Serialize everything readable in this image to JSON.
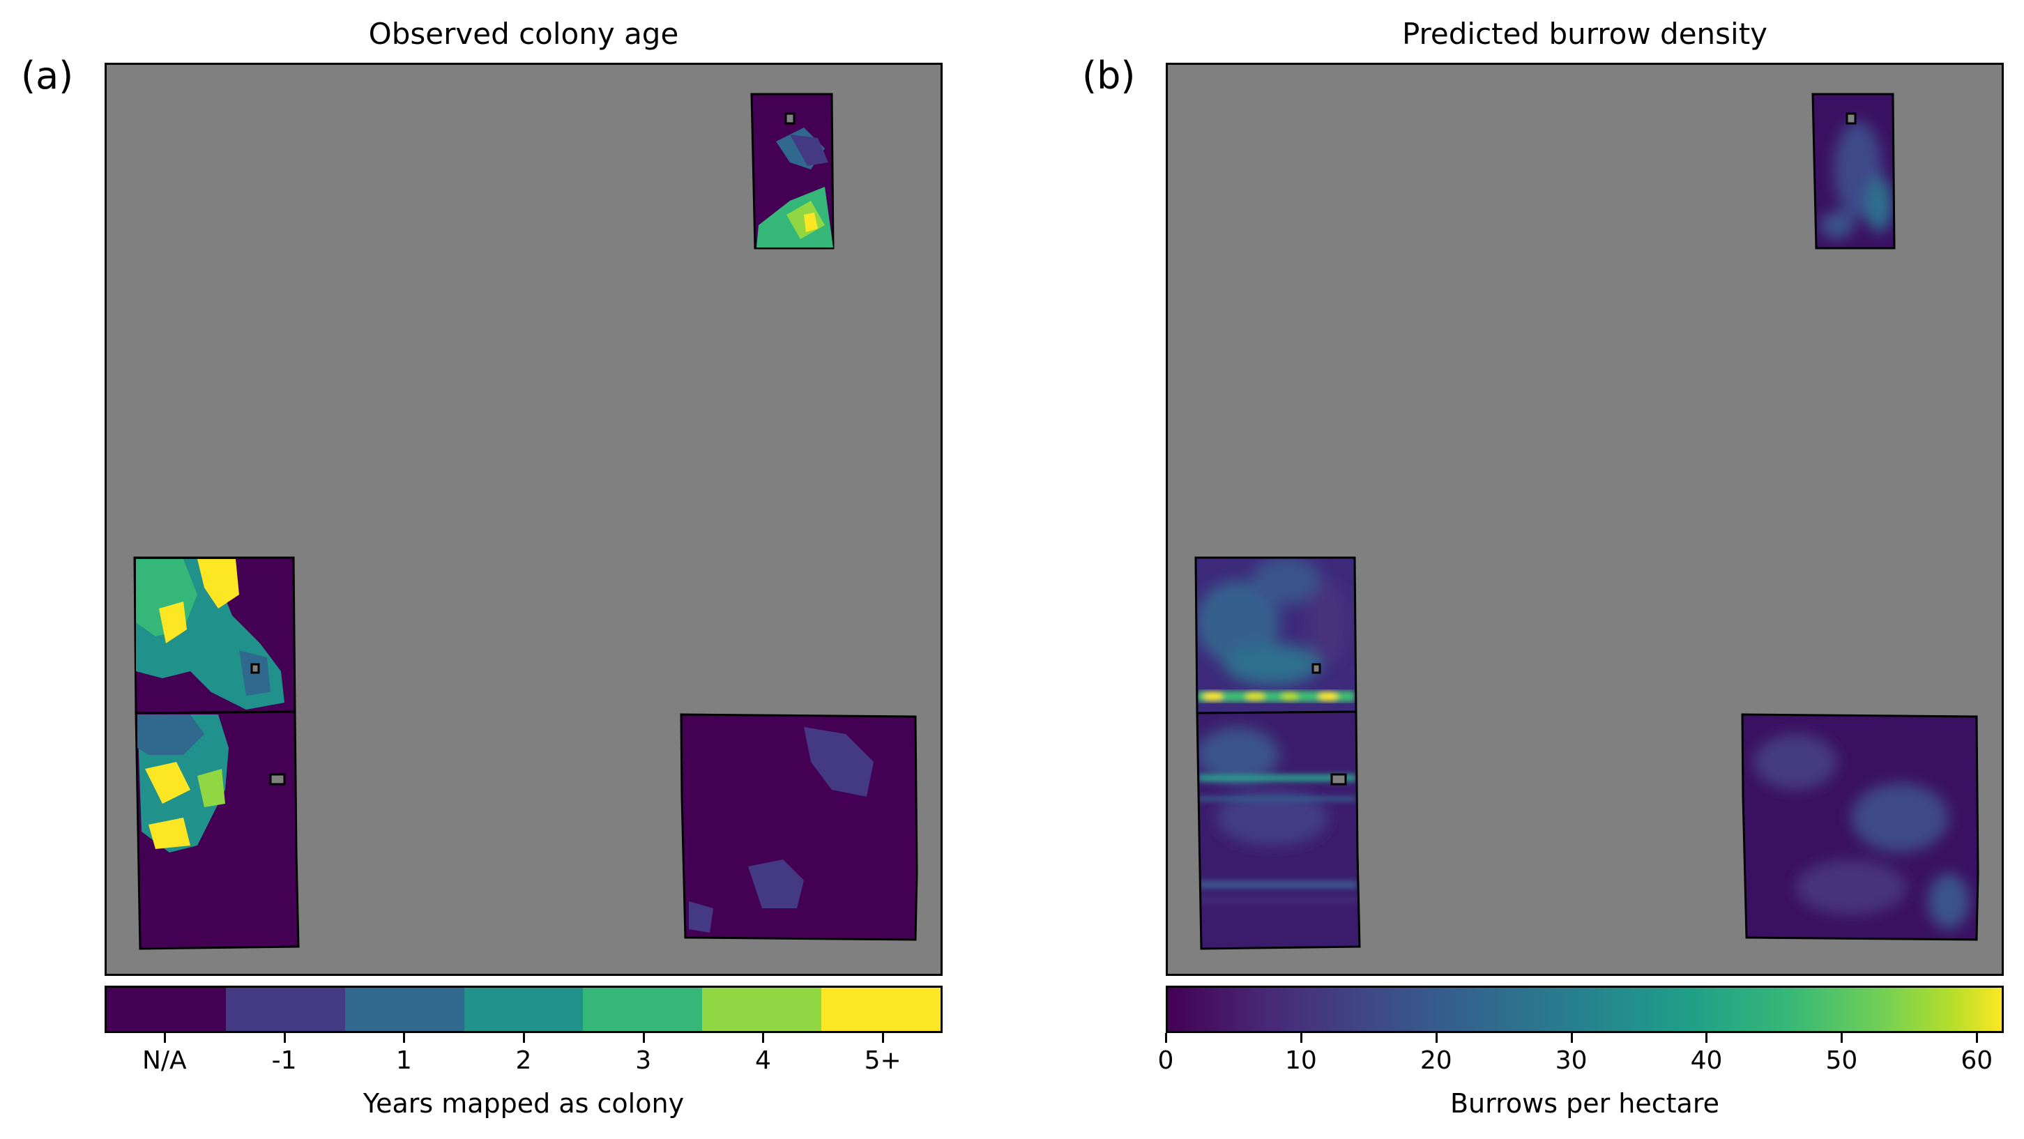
{
  "panels": [
    {
      "letter": "(a)",
      "title": "Observed colony age",
      "colorbar": {
        "label": "Years mapped as colony",
        "type": "discrete",
        "categories": [
          "N/A",
          "-1",
          "1",
          "2",
          "3",
          "4",
          "5+"
        ],
        "colors": [
          "#440154",
          "#443983",
          "#31688e",
          "#21918c",
          "#35b779",
          "#90d743",
          "#fde725"
        ]
      }
    },
    {
      "letter": "(b)",
      "title": "Predicted burrow density",
      "colorbar": {
        "label": "Burrows per hectare",
        "type": "continuous",
        "range": [
          0,
          62
        ],
        "ticks": [
          "0",
          "10",
          "20",
          "30",
          "40",
          "50",
          "60"
        ],
        "colormap": "viridis"
      }
    }
  ],
  "colors": {
    "background_map": "#808080",
    "outline": "#000000"
  }
}
